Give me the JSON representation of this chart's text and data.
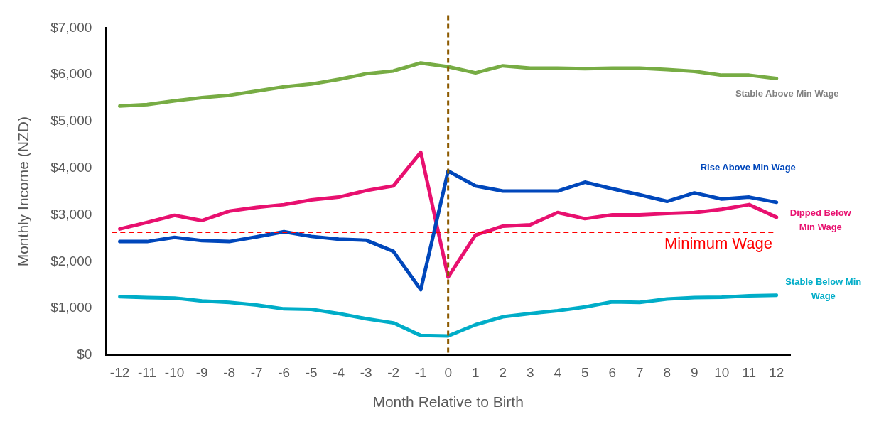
{
  "chart_data": {
    "type": "line",
    "xlabel": "Month Relative to Birth",
    "ylabel": "Monthly Income (NZD)",
    "x": [
      -12,
      -11,
      -10,
      -9,
      -8,
      -7,
      -6,
      -5,
      -4,
      -3,
      -2,
      -1,
      0,
      1,
      2,
      3,
      4,
      5,
      6,
      7,
      8,
      9,
      10,
      11,
      12
    ],
    "xlim": [
      -12.5,
      12.5
    ],
    "xticks": [
      -12,
      -11,
      -10,
      -9,
      -8,
      -7,
      -6,
      -5,
      -4,
      -3,
      -2,
      -1,
      0,
      1,
      2,
      3,
      4,
      5,
      6,
      7,
      8,
      9,
      10,
      11,
      12
    ],
    "ylim": [
      0,
      7000
    ],
    "yticks": [
      {
        "value": 0,
        "label": "$0"
      },
      {
        "value": 1000,
        "label": "$1,000"
      },
      {
        "value": 2000,
        "label": "$2,000"
      },
      {
        "value": 3000,
        "label": "$3,000"
      },
      {
        "value": 4000,
        "label": "$4,000"
      },
      {
        "value": 5000,
        "label": "$5,000"
      },
      {
        "value": 6000,
        "label": "$6,000"
      },
      {
        "value": 7000,
        "label": "$7,000"
      }
    ],
    "grid": false,
    "legend": false,
    "marker": "none",
    "line_style": "solid",
    "series": [
      {
        "name": "Stable Above Min Wage",
        "color": "#77ac44",
        "values": [
          5330,
          5360,
          5440,
          5510,
          5560,
          5650,
          5740,
          5800,
          5900,
          6020,
          6080,
          6250,
          6170,
          6040,
          6190,
          6140,
          6140,
          6130,
          6140,
          6140,
          6110,
          6070,
          5990,
          5990,
          5920
        ]
      },
      {
        "name": "Rise Above Min Wage",
        "color": "#0047bb",
        "values": [
          2430,
          2430,
          2520,
          2450,
          2430,
          2530,
          2640,
          2540,
          2480,
          2460,
          2220,
          1400,
          3940,
          3620,
          3510,
          3510,
          3510,
          3700,
          3560,
          3430,
          3290,
          3470,
          3340,
          3380,
          3270
        ]
      },
      {
        "name": "Dipped Below Min Wage",
        "color": "#e8106f",
        "values": [
          2700,
          2840,
          2990,
          2880,
          3080,
          3160,
          3220,
          3320,
          3380,
          3520,
          3620,
          4340,
          1670,
          2570,
          2760,
          2790,
          3050,
          2920,
          3000,
          3000,
          3030,
          3050,
          3120,
          3220,
          2950
        ]
      },
      {
        "name": "Stable Below Min Wage",
        "color": "#00adc8",
        "values": [
          1250,
          1230,
          1220,
          1160,
          1130,
          1070,
          990,
          980,
          890,
          780,
          690,
          420,
          410,
          650,
          820,
          890,
          950,
          1030,
          1140,
          1130,
          1200,
          1230,
          1240,
          1270,
          1280
        ]
      }
    ],
    "ref_lines": [
      {
        "axis": "y",
        "value": 2630,
        "label": "Minimum Wage",
        "color": "#ff0000",
        "line_style": "dashed"
      },
      {
        "axis": "x",
        "value": 0,
        "color": "#8c5a00",
        "line_style": "dashed"
      }
    ]
  }
}
